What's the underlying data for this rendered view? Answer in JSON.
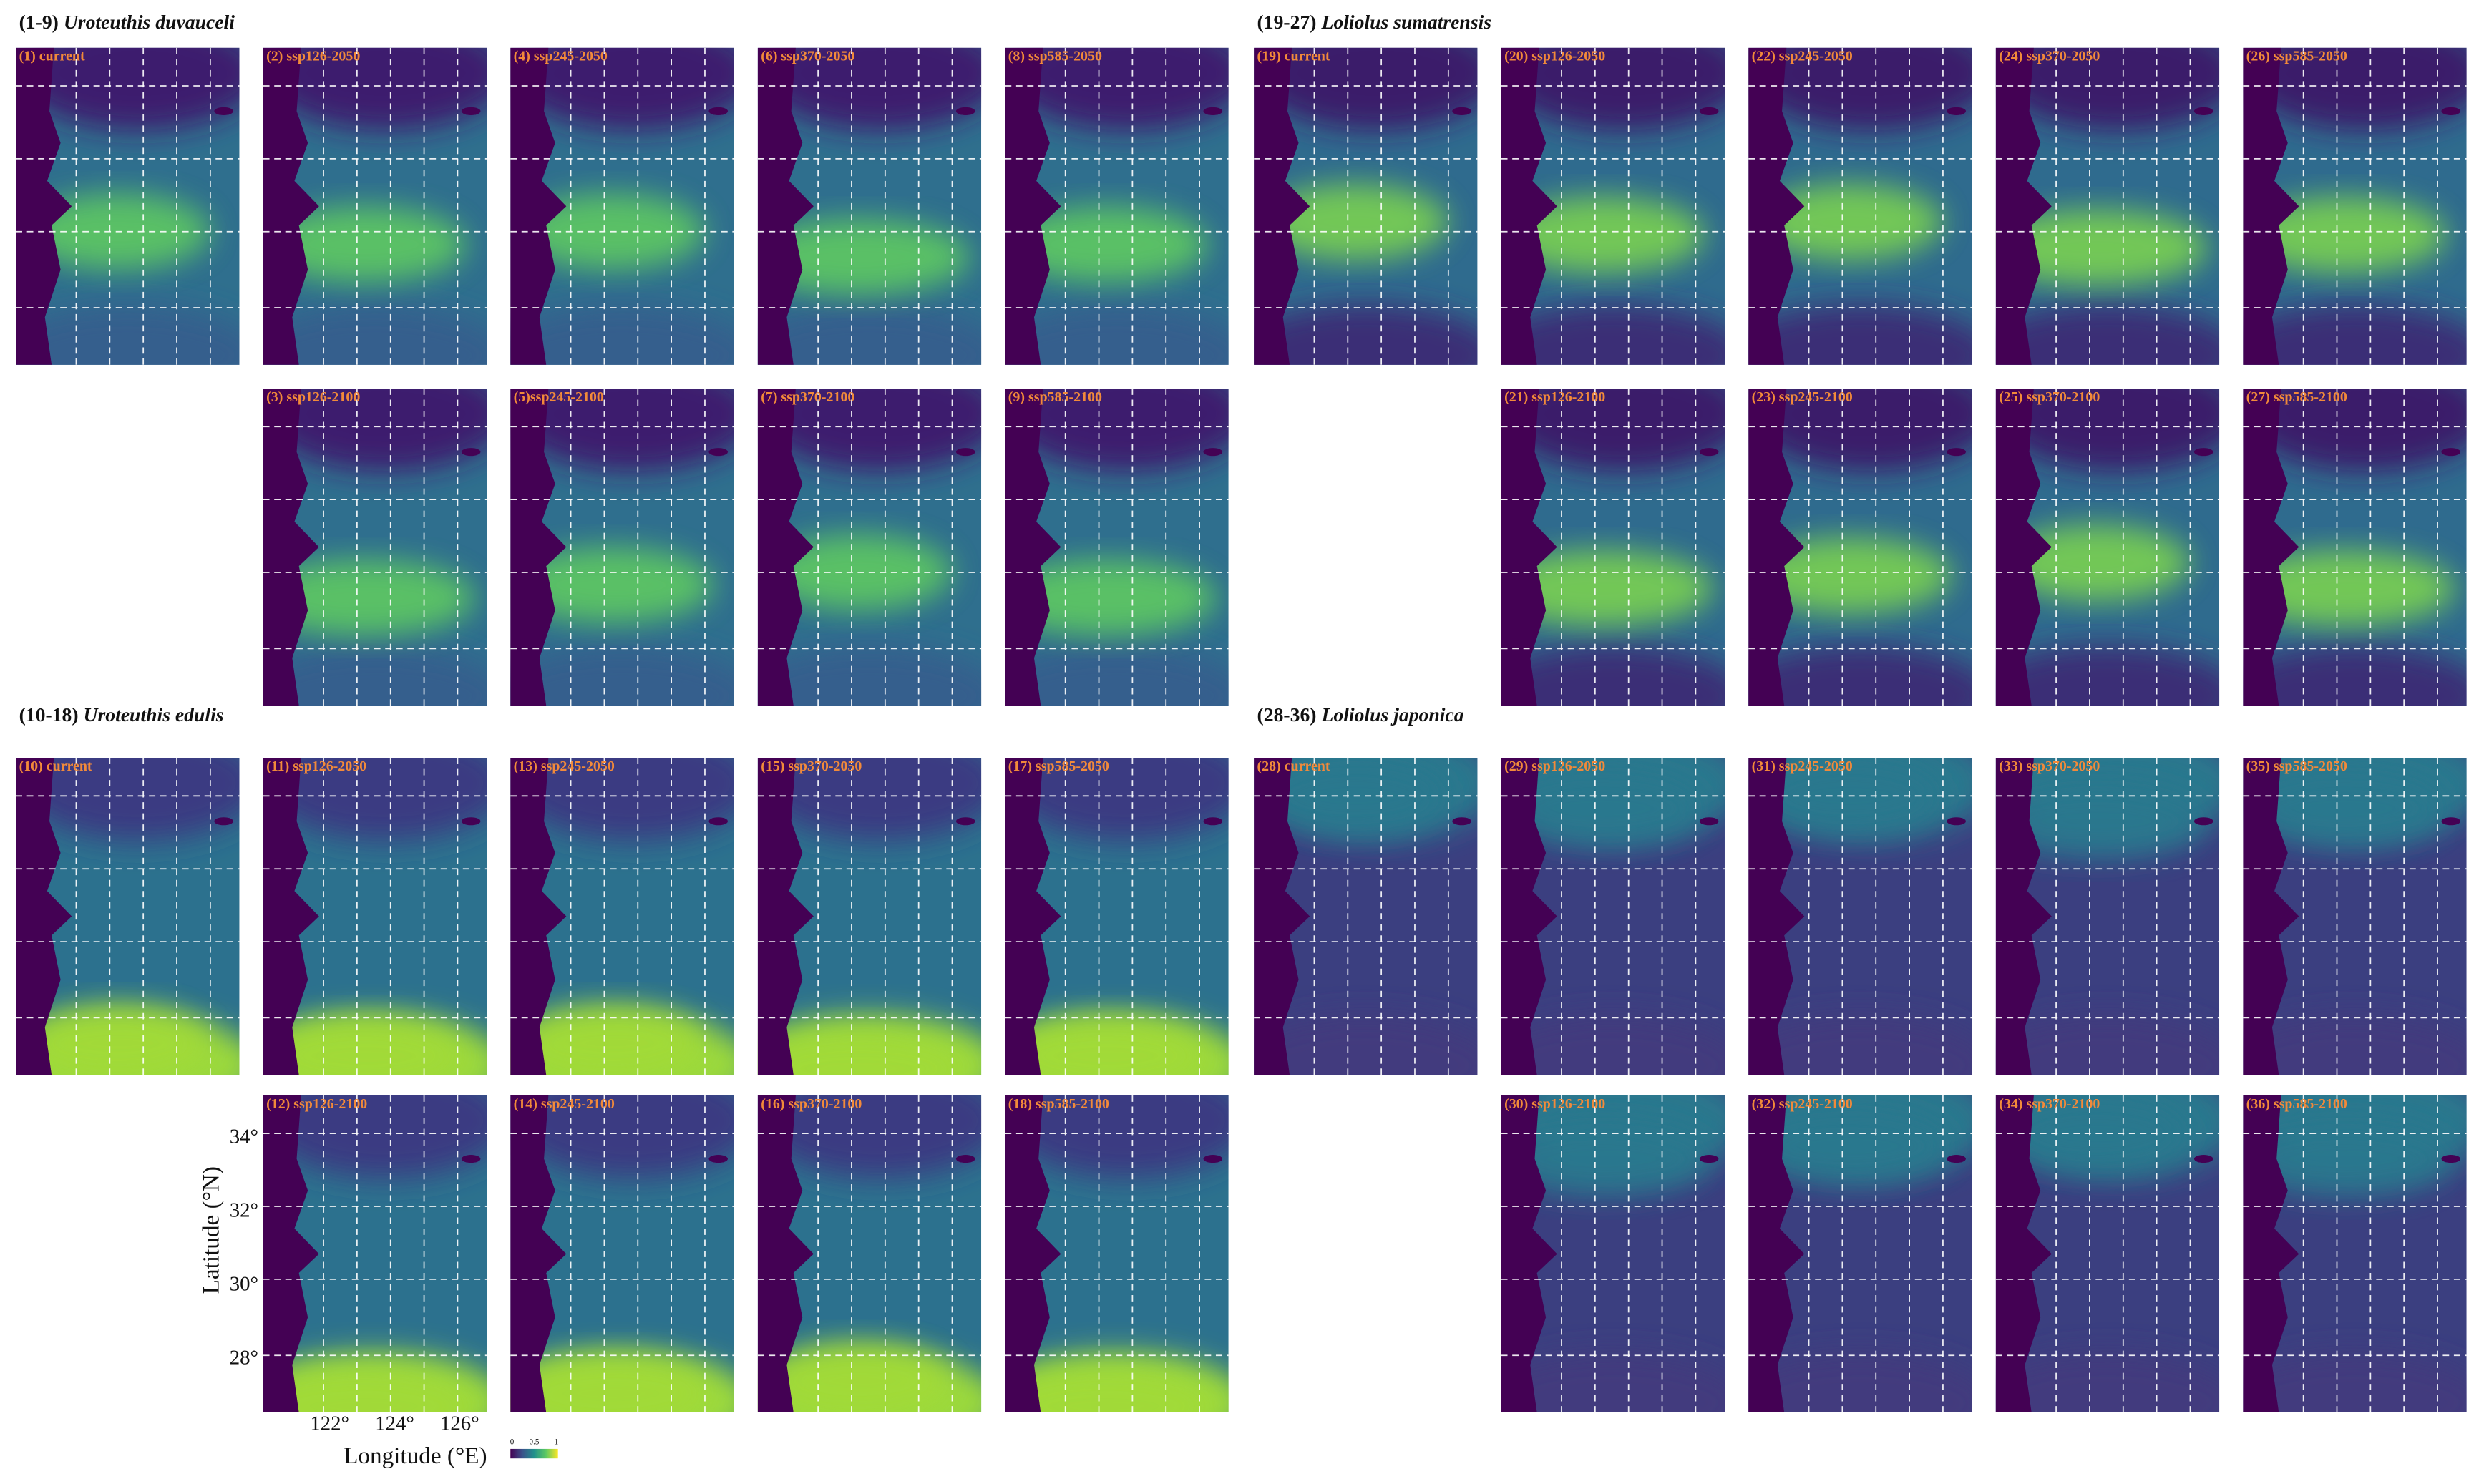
{
  "groups": [
    {
      "title_prefix": "(1-9)",
      "species": "Uroteuthis duvauceli",
      "panels": [
        "(1) current",
        "(2) ssp126-2050",
        "(3) ssp126-2100",
        "(4) ssp245-2050",
        "(5)ssp245-2100",
        "(6) ssp370-2050",
        "(7) ssp370-2100",
        "(8) ssp585-2050",
        "(9) ssp585-2100"
      ]
    },
    {
      "title_prefix": "(19-27)",
      "species": "Loliolus sumatrensis",
      "panels": [
        "(19) current",
        "(20) ssp126-2050",
        "(21) ssp126-2100",
        "(22) ssp245-2050",
        "(23) ssp245-2100",
        "(24) ssp370-2050",
        "(25) ssp370-2100",
        "(26) ssp585-2050",
        "(27) ssp585-2100"
      ]
    },
    {
      "title_prefix": "(10-18)",
      "species": "Uroteuthis edulis",
      "panels": [
        "(10) current",
        "(11) ssp126-2050",
        "(12) ssp126-2100",
        "(13) ssp245-2050",
        "(14) ssp245-2100",
        "(15) ssp370-2050",
        "(16) ssp370-2100",
        "(17) ssp585-2050",
        "(18) ssp585-2100"
      ]
    },
    {
      "title_prefix": "(28-36)",
      "species": "Loliolus japonica",
      "panels": [
        "(28) current",
        "(29) ssp126-2050",
        "(30) ssp126-2100",
        "(31) ssp245-2050",
        "(32) ssp245-2100",
        "(33) ssp370-2050",
        "(34) ssp370-2100",
        "(35) ssp585-2050",
        "(36) ssp585-2100"
      ]
    }
  ],
  "map_axis": {
    "y_label": "Latitude (°N)",
    "y_ticks": [
      "34°",
      "32°",
      "30°",
      "28°"
    ],
    "x_label": "Longitude (°E)",
    "x_ticks": [
      "122°",
      "124°",
      "126°"
    ]
  },
  "colorbar": {
    "labels": [
      "0",
      "0.5",
      "1"
    ]
  }
}
